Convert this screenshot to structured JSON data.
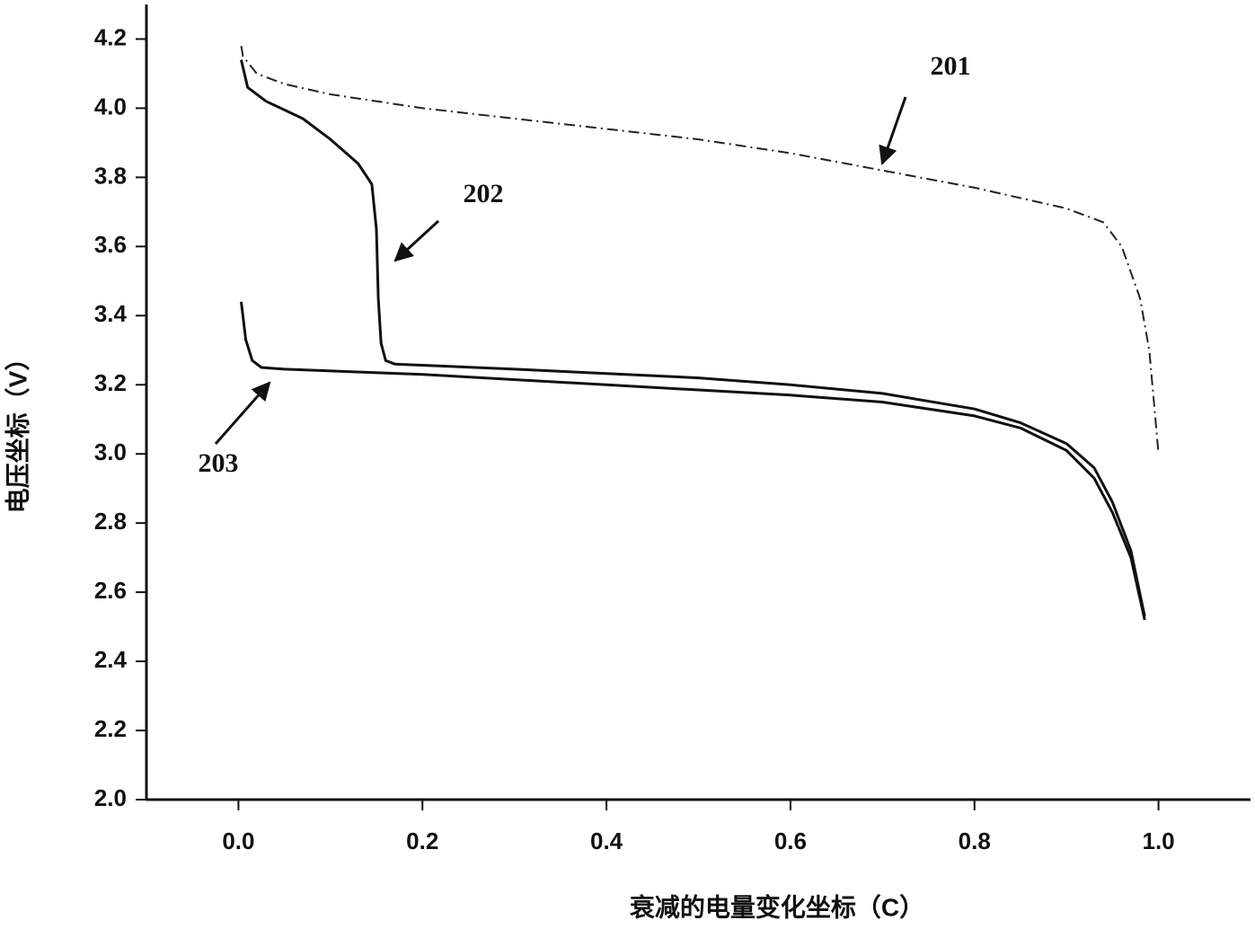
{
  "chart_data": {
    "type": "line",
    "xlabel": "衰减的电量变化坐标（C）",
    "ylabel": "电压坐标（V）",
    "xlim": [
      -0.1,
      1.1
    ],
    "ylim": [
      2.0,
      4.3
    ],
    "xticks": [
      {
        "value": 0,
        "label": "0.0"
      },
      0.2,
      0.4,
      0.6,
      0.8,
      {
        "value": 1,
        "label": "1.0"
      }
    ],
    "yticks": [
      {
        "value": 2,
        "label": "2.0"
      },
      2.2,
      2.4,
      2.6,
      2.8,
      {
        "value": 3,
        "label": "3.0"
      },
      3.2,
      3.4,
      3.6,
      3.8,
      {
        "value": 4,
        "label": "4.0"
      },
      4.2
    ],
    "series": [
      {
        "name": "201",
        "color": "#222222",
        "style": "dashdot",
        "x": [
          0.003,
          0.005,
          0.02,
          0.05,
          0.1,
          0.2,
          0.3,
          0.4,
          0.5,
          0.6,
          0.7,
          0.8,
          0.9,
          0.94,
          0.96,
          0.98,
          0.99,
          0.995,
          1.0
        ],
        "values": [
          4.18,
          4.15,
          4.1,
          4.07,
          4.04,
          4.0,
          3.97,
          3.94,
          3.91,
          3.87,
          3.82,
          3.77,
          3.71,
          3.67,
          3.6,
          3.45,
          3.3,
          3.15,
          3.0
        ]
      },
      {
        "name": "202",
        "color": "#111111",
        "style": "solid",
        "x": [
          0.003,
          0.01,
          0.03,
          0.07,
          0.1,
          0.13,
          0.145,
          0.15,
          0.152,
          0.155,
          0.16,
          0.17,
          0.3,
          0.5,
          0.6,
          0.7,
          0.8,
          0.85,
          0.9,
          0.93,
          0.95,
          0.97,
          0.985
        ],
        "values": [
          4.14,
          4.06,
          4.02,
          3.97,
          3.91,
          3.84,
          3.78,
          3.65,
          3.45,
          3.32,
          3.27,
          3.26,
          3.245,
          3.22,
          3.2,
          3.175,
          3.13,
          3.09,
          3.03,
          2.96,
          2.86,
          2.72,
          2.53
        ]
      },
      {
        "name": "203",
        "color": "#111111",
        "style": "solid",
        "x": [
          0.003,
          0.008,
          0.015,
          0.025,
          0.05,
          0.2,
          0.4,
          0.6,
          0.7,
          0.8,
          0.85,
          0.9,
          0.93,
          0.95,
          0.97,
          0.985
        ],
        "values": [
          3.44,
          3.33,
          3.27,
          3.25,
          3.245,
          3.23,
          3.2,
          3.17,
          3.15,
          3.11,
          3.075,
          3.01,
          2.93,
          2.83,
          2.7,
          2.52
        ]
      }
    ]
  }
}
